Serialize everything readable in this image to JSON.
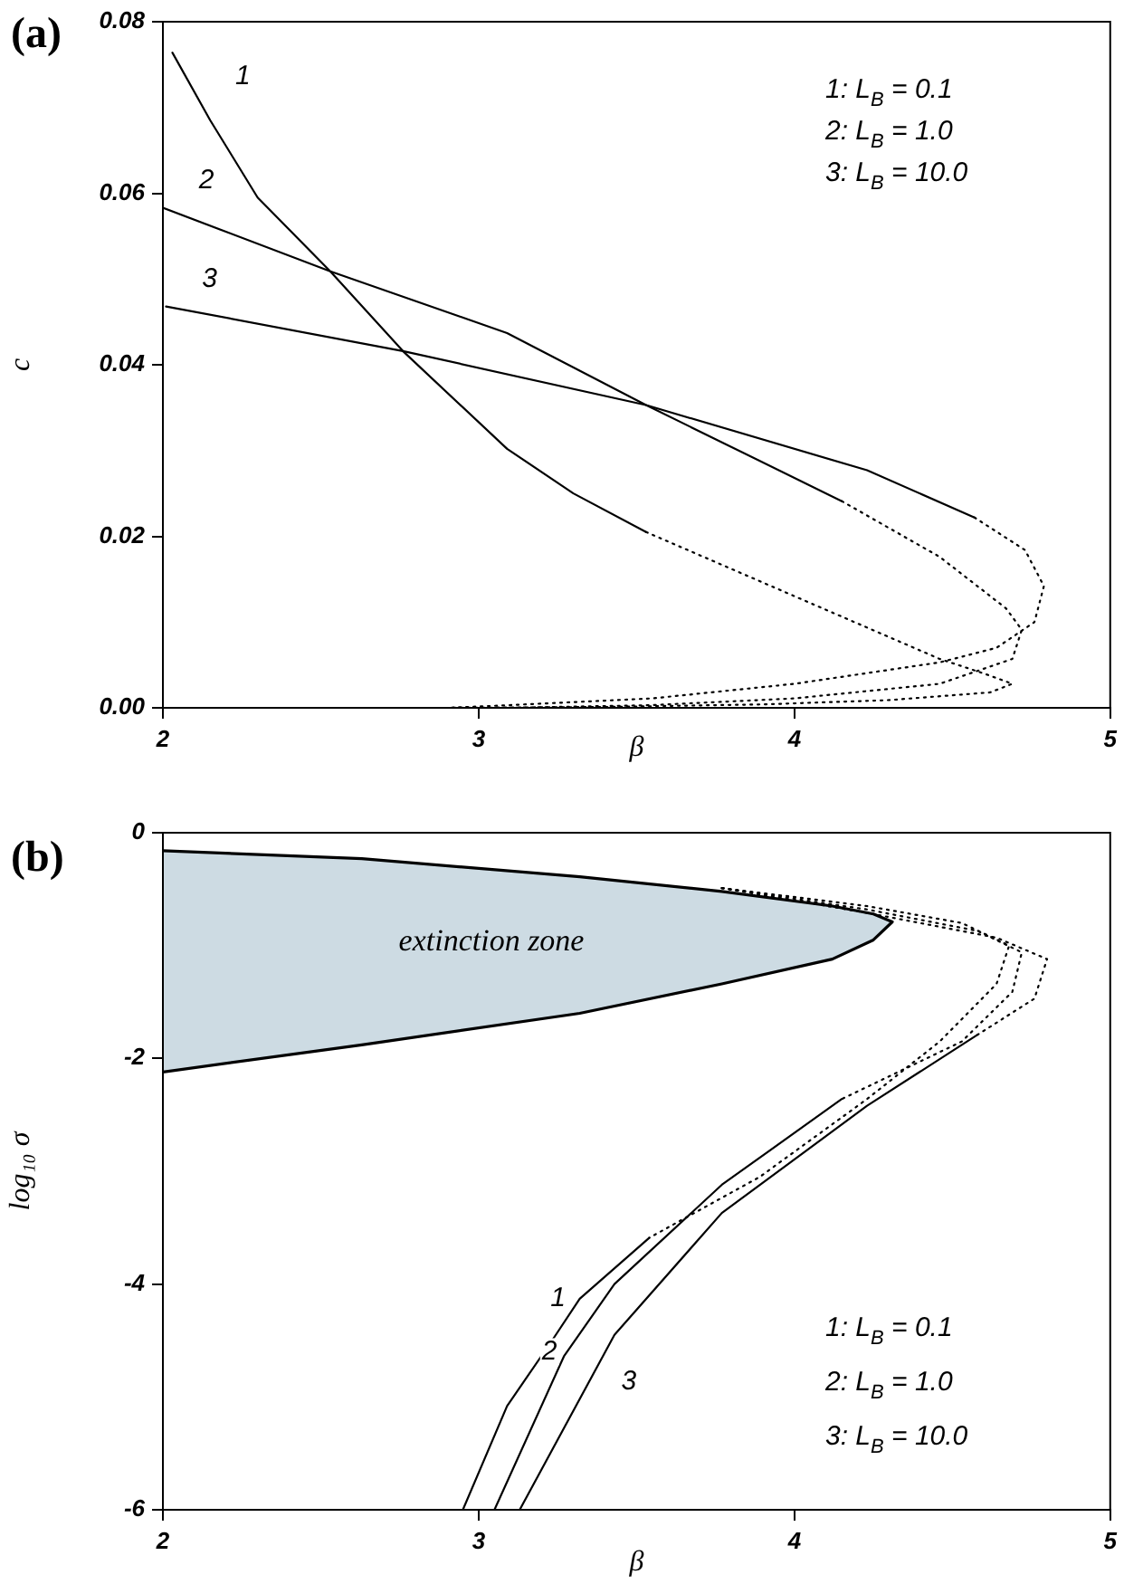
{
  "chart_data": [
    {
      "type": "line",
      "title": "(a)",
      "xlabel": "β",
      "ylabel": "c",
      "xlim": [
        2,
        5
      ],
      "xticks": [
        2,
        3,
        4,
        5
      ],
      "ylim": [
        0,
        0.08
      ],
      "yticks": [
        {
          "value": 0,
          "label": "0.00"
        },
        0.02,
        0.04,
        0.06,
        0.08
      ],
      "grid": false,
      "legend": false,
      "marker": "none",
      "annotations": [
        "1: L$_{B}$ = 0.1",
        "2: L$_{B}$ = 1.0",
        "3: L$_{B}$ = 10.0"
      ],
      "series": [
        {
          "name": "1",
          "type": "line",
          "line_style": "solid",
          "color": "#000000",
          "x": [
            2.03,
            2.15,
            2.3,
            2.53,
            2.76,
            3.09,
            3.3,
            3.53
          ],
          "values": [
            0.0764,
            0.0685,
            0.0595,
            0.0509,
            0.0416,
            0.0302,
            0.025,
            0.0205
          ]
        },
        {
          "type": "line",
          "line_style": "dotted",
          "color": "#000000",
          "x": [
            3.53,
            4.02,
            4.46,
            4.6,
            4.69,
            4.62,
            4.3,
            3.9,
            3.4,
            2.9
          ],
          "values": [
            0.0205,
            0.0127,
            0.0057,
            0.004,
            0.0028,
            0.0018,
            0.0009,
            0.0004,
            0.0001,
            0
          ]
        },
        {
          "name": "2",
          "type": "line",
          "line_style": "solid",
          "color": "#000000",
          "x": [
            2,
            2.53,
            3.09,
            3.53,
            4.15
          ],
          "values": [
            0.0583,
            0.0509,
            0.0437,
            0.0353,
            0.0241
          ]
        },
        {
          "type": "line",
          "line_style": "dotted",
          "color": "#000000",
          "x": [
            4.15,
            4.46,
            4.67,
            4.72,
            4.69,
            4.46,
            4,
            3.54,
            3.09
          ],
          "values": [
            0.0241,
            0.0176,
            0.0116,
            0.0091,
            0.0057,
            0.0028,
            0.0011,
            0.0003,
            0
          ]
        },
        {
          "name": "3",
          "type": "line",
          "line_style": "solid",
          "color": "#000000",
          "x": [
            2.01,
            2.76,
            3.53,
            4.23,
            4.57
          ],
          "values": [
            0.0468,
            0.0416,
            0.0353,
            0.0277,
            0.0222
          ]
        },
        {
          "type": "line",
          "line_style": "dotted",
          "color": "#000000",
          "x": [
            4.57,
            4.73,
            4.79,
            4.76,
            4.64,
            4.46,
            4,
            3.55,
            3.09,
            2.9
          ],
          "values": [
            0.0222,
            0.0184,
            0.0142,
            0.01,
            0.007,
            0.0053,
            0.0028,
            0.0011,
            0.0003,
            0
          ]
        }
      ]
    },
    {
      "type": "line",
      "title": "(b)",
      "xlabel": "β",
      "ylabel": "log₁₀ σ",
      "xlim": [
        2,
        5
      ],
      "xticks": [
        2,
        3,
        4,
        5
      ],
      "ylim": [
        -6,
        0
      ],
      "yticks": [
        -6,
        -4,
        -2,
        0
      ],
      "grid": false,
      "legend": false,
      "marker": "none",
      "annotations": [
        "1: L$_{B}$ = 0.1",
        "2: L$_{B}$ = 1.0",
        "3: L$_{B}$ = 10.0"
      ],
      "series": [
        {
          "name": "extinction zone",
          "type": "area",
          "color": "#cddbe3",
          "x": [
            2,
            2.63,
            3.32,
            3.77,
            4.12,
            4.25,
            4.31,
            4.25,
            4.12,
            3.77,
            3.32,
            2.63,
            2
          ],
          "values": [
            -0.16,
            -0.23,
            -0.39,
            -0.52,
            -0.65,
            -0.72,
            -0.79,
            -0.95,
            -1.12,
            -1.34,
            -1.6,
            -1.88,
            -2.12
          ]
        },
        {
          "name": "1",
          "type": "line",
          "line_style": "solid",
          "color": "#000000",
          "x": [
            3.54,
            3.32,
            3.23,
            3.09,
            2.95
          ],
          "values": [
            -3.59,
            -4.13,
            -4.51,
            -5.08,
            -6
          ]
        },
        {
          "type": "line",
          "line_style": "dotted",
          "color": "#000000",
          "x": [
            3.77,
            4.23,
            4.53,
            4.68,
            4.64,
            4.46,
            4.23,
            3.89,
            3.54
          ],
          "values": [
            -0.49,
            -0.65,
            -0.8,
            -1,
            -1.34,
            -1.85,
            -2.36,
            -3.05,
            -3.59
          ]
        },
        {
          "name": "2",
          "type": "line",
          "line_style": "solid",
          "color": "#000000",
          "x": [
            4.15,
            3.77,
            3.43,
            3.27,
            3.05
          ],
          "values": [
            -2.36,
            -3.12,
            -4,
            -4.64,
            -6
          ]
        },
        {
          "type": "line",
          "line_style": "dotted",
          "color": "#000000",
          "x": [
            3.77,
            4.23,
            4.58,
            4.72,
            4.69,
            4.53,
            4.15
          ],
          "values": [
            -0.49,
            -0.68,
            -0.87,
            -1.06,
            -1.41,
            -1.85,
            -2.36
          ]
        },
        {
          "name": "3",
          "type": "line",
          "line_style": "solid",
          "color": "#000000",
          "x": [
            4.58,
            4.23,
            3.77,
            3.43,
            3.13
          ],
          "values": [
            -1.79,
            -2.42,
            -3.37,
            -4.45,
            -6
          ]
        },
        {
          "type": "line",
          "line_style": "dotted",
          "color": "#000000",
          "x": [
            3.77,
            4.23,
            4.64,
            4.8,
            4.76,
            4.58
          ],
          "values": [
            -0.49,
            -0.71,
            -0.93,
            -1.12,
            -1.47,
            -1.79
          ]
        }
      ]
    }
  ]
}
